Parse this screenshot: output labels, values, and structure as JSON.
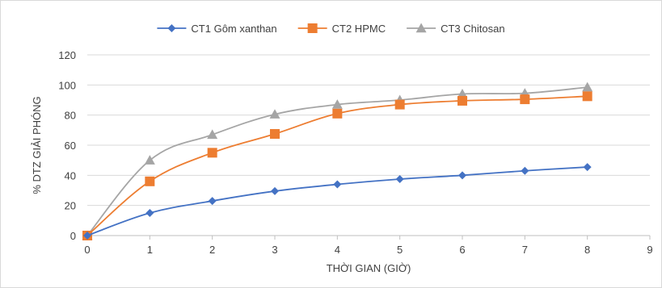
{
  "chart_data": {
    "type": "line",
    "title": "",
    "xlabel": "THỜI GIAN (GIỜ)",
    "ylabel": "% DTZ GIẢI PHÓNG",
    "xlim": [
      0,
      9
    ],
    "ylim": [
      0,
      120
    ],
    "x_ticks": [
      "0",
      "1",
      "2",
      "3",
      "4",
      "5",
      "6",
      "7",
      "8",
      "9"
    ],
    "y_ticks": [
      "0",
      "20",
      "40",
      "60",
      "80",
      "100",
      "120"
    ],
    "grid": "horizontal",
    "legend_position": "top",
    "x": [
      0,
      1,
      2,
      3,
      4,
      5,
      6,
      7,
      8
    ],
    "series": [
      {
        "name": "CT1 Gôm xanthan",
        "color": "#4472C4",
        "marker": "diamond",
        "values": [
          0,
          15,
          23,
          29.5,
          34,
          37.5,
          40,
          43,
          45.5
        ]
      },
      {
        "name": "CT2 HPMC",
        "color": "#ED7D31",
        "marker": "square",
        "values": [
          0,
          36,
          55,
          67.5,
          81,
          87,
          89.5,
          90.5,
          92.5
        ]
      },
      {
        "name": "CT3 Chitosan",
        "color": "#A5A5A5",
        "marker": "triangle",
        "values": [
          0,
          50,
          67,
          80.5,
          87,
          90,
          94,
          94.5,
          98.5
        ]
      }
    ]
  }
}
